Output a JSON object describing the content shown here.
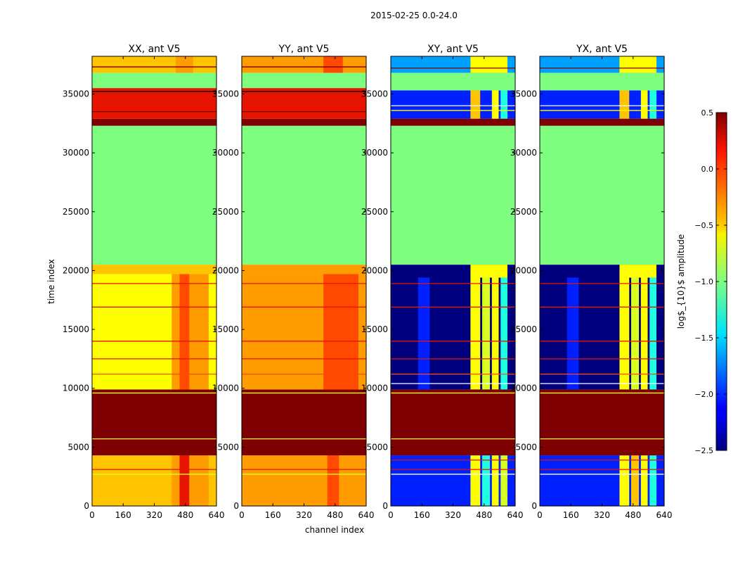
{
  "figure_title": "2015-02-25 0.0-24.0",
  "colormap": "jet",
  "colors": {
    "dark_red": "#7f0000",
    "red": "#e61400",
    "orange_red": "#ff4a00",
    "orange": "#ff9d00",
    "yellow_orange": "#ffc400",
    "yellow": "#ffff00",
    "yellow_green": "#d8ff20",
    "green": "#7fff7f",
    "cyan": "#20ffe0",
    "sky": "#00a0ff",
    "blue": "#0020ff",
    "dark_blue": "#00007f",
    "white": "#ffffff",
    "black": "#000000"
  },
  "chart_data": {
    "type": "heatmap",
    "xlabel": "channel index",
    "ylabel": "time index",
    "xlim": [
      0,
      640
    ],
    "ylim": [
      0,
      38200
    ],
    "xticks": [
      0,
      160,
      320,
      480,
      640
    ],
    "yticks": [
      0,
      5000,
      10000,
      15000,
      20000,
      25000,
      30000,
      35000
    ],
    "colorbar": {
      "label": "log$_{10}$ amplitude",
      "range": [
        -2.5,
        0.5
      ],
      "ticks": [
        "0.5",
        "0.0",
        "−0.5",
        "−1.0",
        "−1.5",
        "−2.0",
        "−2.5"
      ]
    },
    "panels": [
      {
        "title": "XX, ant V5",
        "bands": [
          {
            "t0": 0,
            "t1": 4300,
            "base": "yellow_orange",
            "streaks": [
              {
                "c0": 410,
                "c1": 600,
                "color": "orange"
              },
              {
                "c0": 450,
                "c1": 500,
                "color": "red"
              }
            ]
          },
          {
            "t0": 4300,
            "t1": 9900,
            "base": "dark_red",
            "streaks": []
          },
          {
            "t0": 9900,
            "t1": 19700,
            "base": "yellow",
            "streaks": [
              {
                "c0": 410,
                "c1": 600,
                "color": "orange"
              },
              {
                "c0": 450,
                "c1": 500,
                "color": "orange_red"
              }
            ]
          },
          {
            "t0": 19700,
            "t1": 20500,
            "base": "yellow_orange",
            "streaks": []
          },
          {
            "t0": 20500,
            "t1": 32300,
            "base": "green",
            "streaks": []
          },
          {
            "t0": 32300,
            "t1": 32900,
            "base": "dark_red",
            "streaks": []
          },
          {
            "t0": 32900,
            "t1": 35500,
            "base": "orange",
            "streaks": [
              {
                "c0": 0,
                "c1": 640,
                "color": "red"
              }
            ]
          },
          {
            "t0": 35500,
            "t1": 36800,
            "base": "green",
            "streaks": []
          },
          {
            "t0": 36800,
            "t1": 38200,
            "base": "yellow_orange",
            "streaks": [
              {
                "c0": 430,
                "c1": 520,
                "color": "orange"
              }
            ]
          }
        ],
        "lines": [
          {
            "t": 2700,
            "color": "yellow_green"
          },
          {
            "t": 3100,
            "color": "red"
          },
          {
            "t": 5700,
            "color": "yellow"
          },
          {
            "t": 9600,
            "color": "yellow"
          },
          {
            "t": 11200,
            "color": "orange_red"
          },
          {
            "t": 12500,
            "color": "red"
          },
          {
            "t": 14000,
            "color": "red"
          },
          {
            "t": 16900,
            "color": "red"
          },
          {
            "t": 18900,
            "color": "red"
          },
          {
            "t": 33500,
            "color": "dark_red"
          },
          {
            "t": 35200,
            "color": "black"
          },
          {
            "t": 37300,
            "color": "dark_red"
          }
        ]
      },
      {
        "title": "YY, ant V5",
        "bands": [
          {
            "t0": 0,
            "t1": 4300,
            "base": "orange",
            "streaks": [
              {
                "c0": 440,
                "c1": 500,
                "color": "orange_red"
              }
            ]
          },
          {
            "t0": 4300,
            "t1": 9900,
            "base": "dark_red",
            "streaks": []
          },
          {
            "t0": 9900,
            "t1": 19700,
            "base": "orange",
            "streaks": [
              {
                "c0": 420,
                "c1": 600,
                "color": "orange_red"
              }
            ]
          },
          {
            "t0": 19700,
            "t1": 20500,
            "base": "orange",
            "streaks": []
          },
          {
            "t0": 20500,
            "t1": 32300,
            "base": "green",
            "streaks": []
          },
          {
            "t0": 32300,
            "t1": 32900,
            "base": "dark_red",
            "streaks": []
          },
          {
            "t0": 32900,
            "t1": 35500,
            "base": "orange",
            "streaks": [
              {
                "c0": 0,
                "c1": 640,
                "color": "red"
              }
            ]
          },
          {
            "t0": 35500,
            "t1": 36800,
            "base": "green",
            "streaks": []
          },
          {
            "t0": 36800,
            "t1": 38200,
            "base": "orange",
            "streaks": [
              {
                "c0": 420,
                "c1": 520,
                "color": "orange_red"
              }
            ]
          }
        ],
        "lines": [
          {
            "t": 2700,
            "color": "yellow_green"
          },
          {
            "t": 3100,
            "color": "red"
          },
          {
            "t": 5700,
            "color": "yellow"
          },
          {
            "t": 9600,
            "color": "yellow"
          },
          {
            "t": 11200,
            "color": "orange_red"
          },
          {
            "t": 12500,
            "color": "red"
          },
          {
            "t": 14000,
            "color": "red"
          },
          {
            "t": 16900,
            "color": "red"
          },
          {
            "t": 18900,
            "color": "red"
          },
          {
            "t": 33500,
            "color": "dark_red"
          },
          {
            "t": 35200,
            "color": "black"
          },
          {
            "t": 37300,
            "color": "dark_red"
          }
        ]
      },
      {
        "title": "XY, ant V5",
        "bands": [
          {
            "t0": 0,
            "t1": 4300,
            "base": "blue",
            "streaks": [
              {
                "c0": 410,
                "c1": 460,
                "color": "yellow"
              },
              {
                "c0": 470,
                "c1": 510,
                "color": "cyan"
              },
              {
                "c0": 520,
                "c1": 555,
                "color": "yellow"
              },
              {
                "c0": 565,
                "c1": 600,
                "color": "yellow_green"
              }
            ]
          },
          {
            "t0": 4300,
            "t1": 9900,
            "base": "dark_red",
            "streaks": []
          },
          {
            "t0": 9900,
            "t1": 19400,
            "base": "dark_blue",
            "streaks": [
              {
                "c0": 140,
                "c1": 200,
                "color": "blue"
              },
              {
                "c0": 410,
                "c1": 460,
                "color": "yellow"
              },
              {
                "c0": 470,
                "c1": 510,
                "color": "yellow_green"
              },
              {
                "c0": 520,
                "c1": 555,
                "color": "yellow"
              },
              {
                "c0": 565,
                "c1": 600,
                "color": "cyan"
              }
            ]
          },
          {
            "t0": 19400,
            "t1": 20500,
            "base": "dark_blue",
            "streaks": [
              {
                "c0": 410,
                "c1": 600,
                "color": "yellow"
              }
            ]
          },
          {
            "t0": 20500,
            "t1": 32300,
            "base": "green",
            "streaks": []
          },
          {
            "t0": 32300,
            "t1": 32900,
            "base": "dark_red",
            "streaks": []
          },
          {
            "t0": 32900,
            "t1": 35300,
            "base": "blue",
            "streaks": [
              {
                "c0": 410,
                "c1": 460,
                "color": "yellow_orange"
              },
              {
                "c0": 520,
                "c1": 555,
                "color": "yellow"
              },
              {
                "c0": 565,
                "c1": 600,
                "color": "cyan"
              }
            ]
          },
          {
            "t0": 35300,
            "t1": 36800,
            "base": "green",
            "streaks": []
          },
          {
            "t0": 36800,
            "t1": 38200,
            "base": "sky",
            "streaks": [
              {
                "c0": 410,
                "c1": 600,
                "color": "yellow"
              }
            ]
          }
        ],
        "lines": [
          {
            "t": 2700,
            "color": "white"
          },
          {
            "t": 3100,
            "color": "red"
          },
          {
            "t": 3900,
            "color": "red"
          },
          {
            "t": 5700,
            "color": "yellow"
          },
          {
            "t": 9600,
            "color": "yellow"
          },
          {
            "t": 10400,
            "color": "white"
          },
          {
            "t": 11200,
            "color": "orange_red"
          },
          {
            "t": 12500,
            "color": "red"
          },
          {
            "t": 14000,
            "color": "red"
          },
          {
            "t": 16900,
            "color": "red"
          },
          {
            "t": 18900,
            "color": "red"
          },
          {
            "t": 33600,
            "color": "yellow"
          },
          {
            "t": 34000,
            "color": "white"
          },
          {
            "t": 37200,
            "color": "dark_red"
          }
        ]
      },
      {
        "title": "YX, ant V5",
        "bands": [
          {
            "t0": 0,
            "t1": 4300,
            "base": "blue",
            "streaks": [
              {
                "c0": 410,
                "c1": 460,
                "color": "yellow"
              },
              {
                "c0": 470,
                "c1": 510,
                "color": "yellow_orange"
              },
              {
                "c0": 520,
                "c1": 555,
                "color": "yellow"
              },
              {
                "c0": 565,
                "c1": 600,
                "color": "cyan"
              }
            ]
          },
          {
            "t0": 4300,
            "t1": 9900,
            "base": "dark_red",
            "streaks": []
          },
          {
            "t0": 9900,
            "t1": 19400,
            "base": "dark_blue",
            "streaks": [
              {
                "c0": 140,
                "c1": 200,
                "color": "blue"
              },
              {
                "c0": 410,
                "c1": 460,
                "color": "yellow"
              },
              {
                "c0": 470,
                "c1": 510,
                "color": "yellow_green"
              },
              {
                "c0": 520,
                "c1": 555,
                "color": "yellow"
              },
              {
                "c0": 565,
                "c1": 600,
                "color": "cyan"
              }
            ]
          },
          {
            "t0": 19400,
            "t1": 20500,
            "base": "dark_blue",
            "streaks": [
              {
                "c0": 410,
                "c1": 600,
                "color": "yellow"
              }
            ]
          },
          {
            "t0": 20500,
            "t1": 32300,
            "base": "green",
            "streaks": []
          },
          {
            "t0": 32300,
            "t1": 32900,
            "base": "dark_red",
            "streaks": []
          },
          {
            "t0": 32900,
            "t1": 35300,
            "base": "blue",
            "streaks": [
              {
                "c0": 410,
                "c1": 460,
                "color": "yellow_orange"
              },
              {
                "c0": 520,
                "c1": 555,
                "color": "yellow"
              },
              {
                "c0": 565,
                "c1": 600,
                "color": "cyan"
              }
            ]
          },
          {
            "t0": 35300,
            "t1": 36800,
            "base": "green",
            "streaks": []
          },
          {
            "t0": 36800,
            "t1": 38200,
            "base": "sky",
            "streaks": [
              {
                "c0": 410,
                "c1": 600,
                "color": "yellow"
              }
            ]
          }
        ],
        "lines": [
          {
            "t": 2700,
            "color": "white"
          },
          {
            "t": 3100,
            "color": "red"
          },
          {
            "t": 3900,
            "color": "red"
          },
          {
            "t": 5700,
            "color": "yellow"
          },
          {
            "t": 9600,
            "color": "yellow"
          },
          {
            "t": 10400,
            "color": "white"
          },
          {
            "t": 11200,
            "color": "orange_red"
          },
          {
            "t": 12500,
            "color": "red"
          },
          {
            "t": 14000,
            "color": "red"
          },
          {
            "t": 16900,
            "color": "red"
          },
          {
            "t": 18900,
            "color": "red"
          },
          {
            "t": 33600,
            "color": "yellow"
          },
          {
            "t": 34000,
            "color": "white"
          },
          {
            "t": 37200,
            "color": "dark_red"
          }
        ]
      }
    ]
  }
}
